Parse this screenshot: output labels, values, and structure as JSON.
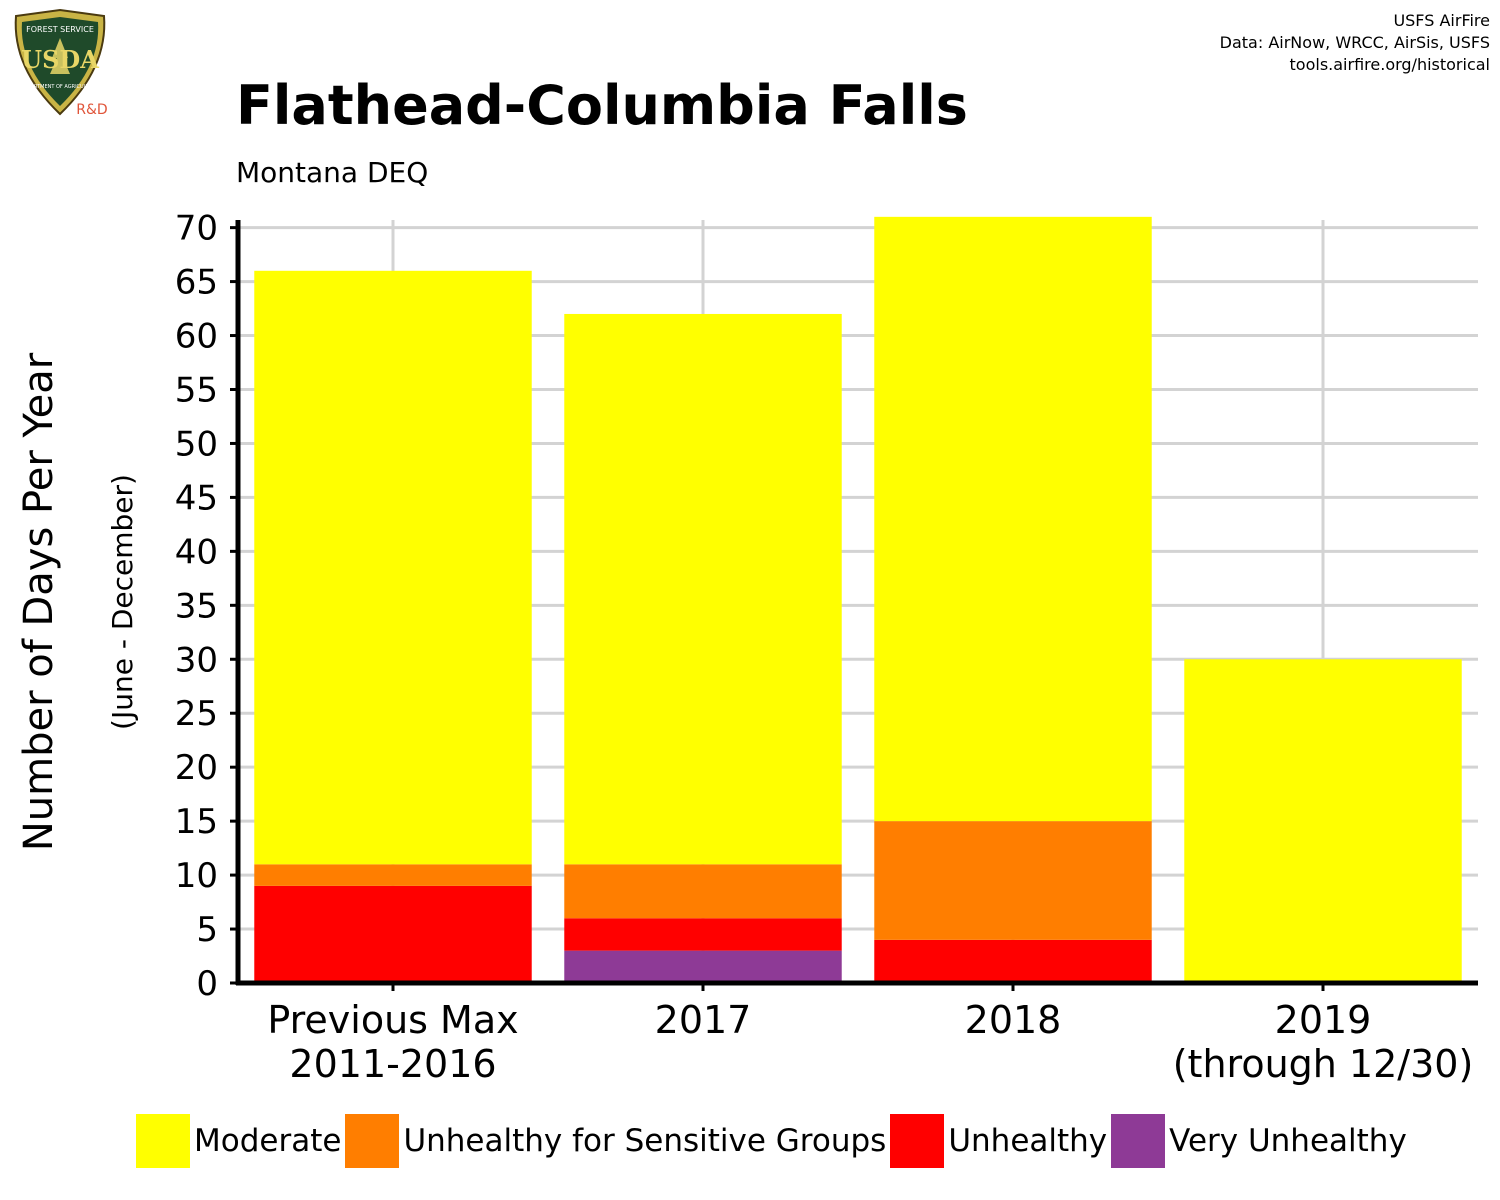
{
  "header": {
    "title": "Flathead-Columbia Falls",
    "subtitle": "Montana DEQ",
    "credits": [
      "USFS AirFire",
      "Data: AirNow, WRCC, AirSis, USFS",
      "tools.airfire.org/historical"
    ]
  },
  "logo": {
    "top_text": "FOREST SERVICE",
    "center_text": "USDA",
    "bottom_text": "DEPARTMENT OF AGRICULTURE",
    "badge_text": "R&D"
  },
  "chart_data": {
    "type": "bar",
    "stacked": true,
    "categories": [
      [
        "Previous Max",
        "2011-2016"
      ],
      [
        "2017"
      ],
      [
        "2018"
      ],
      [
        "2019",
        "(through 12/30)"
      ]
    ],
    "series": [
      {
        "name": "Very Unhealthy",
        "color": "#8e3a96",
        "values": [
          0,
          3,
          0,
          0
        ]
      },
      {
        "name": "Unhealthy",
        "color": "#ff0000",
        "values": [
          9,
          3,
          4,
          0
        ]
      },
      {
        "name": "Unhealthy for Sensitive Groups",
        "color": "#ff7e00",
        "values": [
          2,
          5,
          11,
          0
        ]
      },
      {
        "name": "Moderate",
        "color": "#ffff00",
        "values": [
          55,
          51,
          56,
          30
        ]
      }
    ],
    "legend_order": [
      "Moderate",
      "Unhealthy for Sensitive Groups",
      "Unhealthy",
      "Very Unhealthy"
    ],
    "ylabel": "Number of Days Per Year",
    "ylabel_sub": "(June - December)",
    "xlabel": "",
    "ylim": [
      0,
      70
    ],
    "yticks": [
      0,
      5,
      10,
      15,
      20,
      25,
      30,
      35,
      40,
      45,
      50,
      55,
      60,
      65,
      70
    ],
    "grid": true,
    "legend_position": "bottom"
  }
}
